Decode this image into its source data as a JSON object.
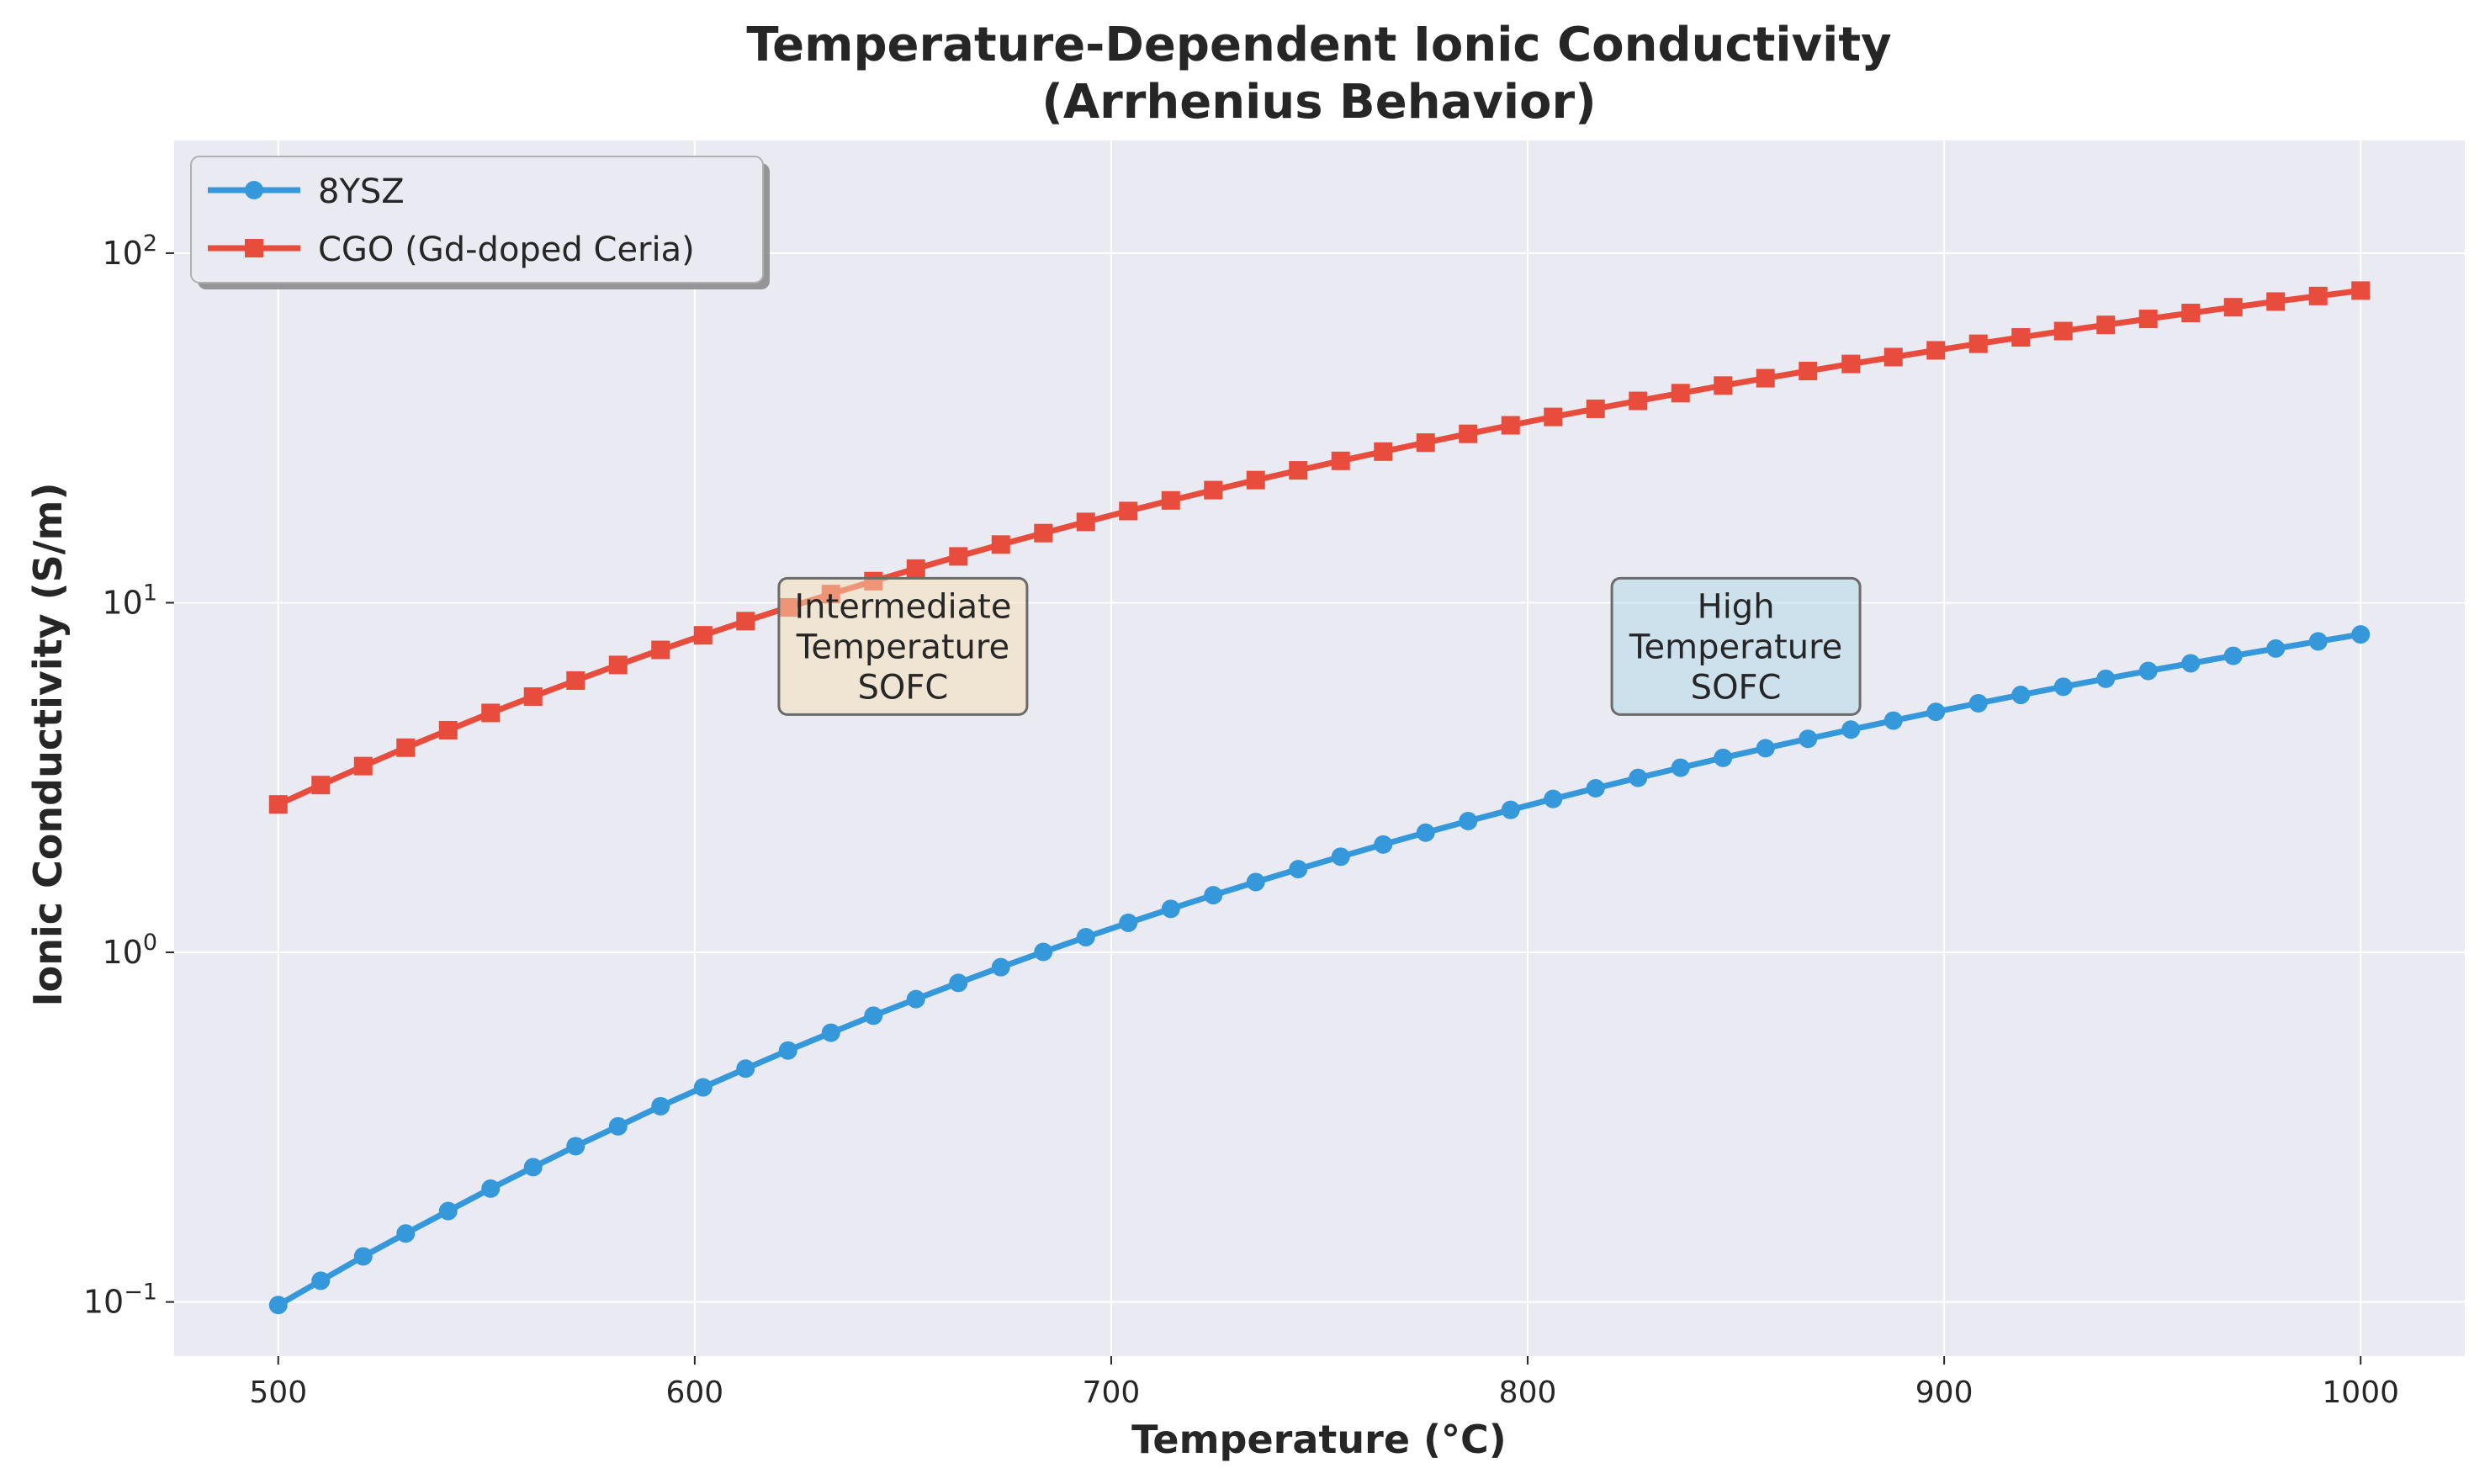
{
  "chart_data": {
    "type": "line",
    "title": "Temperature-Dependent Ionic Conductivity",
    "subtitle": "(Arrhenius Behavior)",
    "xlabel": "Temperature (°C)",
    "ylabel": "Ionic Conductivity (S/m)",
    "xlim": [
      475,
      1025
    ],
    "ylim": [
      0.07,
      210
    ],
    "y_scale": "log",
    "grid": true,
    "legend_position": "top-left",
    "x_ticks": [
      500,
      600,
      700,
      800,
      900,
      1000
    ],
    "x_tick_labels": [
      "500",
      "600",
      "700",
      "800",
      "900",
      "1000"
    ],
    "y_ticks": [
      0.1,
      1,
      10,
      100
    ],
    "y_tick_labels": [
      {
        "base": "10",
        "exp": "−1"
      },
      {
        "base": "10",
        "exp": "0"
      },
      {
        "base": "10",
        "exp": "1"
      },
      {
        "base": "10",
        "exp": "2"
      }
    ],
    "x": [
      500,
      510.2,
      520.4,
      530.6,
      540.8,
      551.0,
      561.2,
      571.4,
      581.6,
      591.8,
      602.0,
      612.2,
      622.4,
      632.7,
      642.9,
      653.1,
      663.3,
      673.5,
      683.7,
      693.9,
      704.1,
      714.3,
      724.5,
      734.7,
      744.9,
      755.1,
      765.3,
      775.5,
      785.7,
      795.9,
      806.1,
      816.3,
      826.5,
      836.7,
      846.9,
      857.1,
      867.3,
      877.6,
      887.8,
      898.0,
      908.2,
      918.4,
      928.6,
      938.8,
      949.0,
      959.2,
      969.4,
      979.6,
      989.8,
      1000
    ],
    "series": [
      {
        "name": "8YSZ",
        "color": "#3498db",
        "marker": "circle",
        "values": [
          0.098,
          0.115,
          0.135,
          0.157,
          0.182,
          0.211,
          0.243,
          0.279,
          0.318,
          0.363,
          0.411,
          0.465,
          0.524,
          0.589,
          0.659,
          0.735,
          0.818,
          0.907,
          1.003,
          1.105,
          1.215,
          1.332,
          1.457,
          1.589,
          1.73,
          1.878,
          2.035,
          2.2,
          2.374,
          2.556,
          2.747,
          2.947,
          3.156,
          3.374,
          3.601,
          3.837,
          4.082,
          4.337,
          4.601,
          4.875,
          5.158,
          5.45,
          5.751,
          6.062,
          6.382,
          6.711,
          7.049,
          7.397,
          7.753,
          8.118
        ]
      },
      {
        "name": "CGO (Gd-doped Ceria)",
        "color": "#e74c3c",
        "marker": "square",
        "values": [
          2.65,
          3.01,
          3.41,
          3.85,
          4.32,
          4.84,
          5.39,
          5.99,
          6.64,
          7.33,
          8.07,
          8.86,
          9.7,
          10.59,
          11.53,
          12.52,
          13.57,
          14.67,
          15.82,
          17.03,
          18.3,
          19.62,
          21.0,
          22.43,
          23.92,
          25.46,
          27.06,
          28.71,
          30.42,
          32.18,
          34.0,
          35.87,
          37.79,
          39.77,
          41.8,
          43.88,
          46.01,
          48.2,
          50.43,
          52.72,
          55.05,
          57.43,
          59.86,
          62.34,
          64.86,
          67.43,
          70.04,
          72.7,
          75.4,
          78.14
        ]
      }
    ],
    "annotations": [
      {
        "lines": [
          "Intermediate",
          "Temperature",
          "SOFC"
        ],
        "x": 650,
        "y": 7.5,
        "box_color": "#f5deb3"
      },
      {
        "lines": [
          "High",
          "Temperature",
          "SOFC"
        ],
        "x": 850,
        "y": 7.5,
        "box_color": "#add8e6"
      }
    ]
  }
}
